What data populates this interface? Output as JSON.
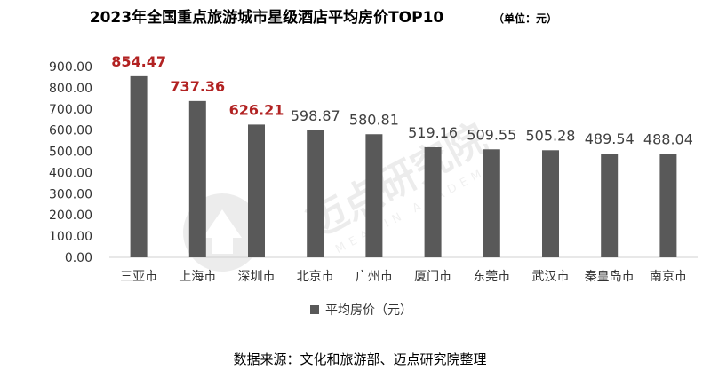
{
  "title": "2023年全国重点旅游城市星级酒店平均房价TOP10",
  "unit": "（单位：元）",
  "source": "数据来源：文化和旅游部、迈点研究院整理",
  "watermark": {
    "text": "迈点研究院",
    "sub": "MEADIN ACADEMY"
  },
  "chart_data": {
    "type": "bar",
    "categories": [
      "三亚市",
      "上海市",
      "深圳市",
      "北京市",
      "广州市",
      "厦门市",
      "东莞市",
      "武汉市",
      "秦皇岛市",
      "南京市"
    ],
    "series": [
      {
        "name": "平均房价（元）",
        "values": [
          854.47,
          737.36,
          626.21,
          598.87,
          580.81,
          519.16,
          509.55,
          505.28,
          489.54,
          488.04
        ]
      }
    ],
    "data_labels": [
      "854.47",
      "737.36",
      "626.21",
      "598.87",
      "580.81",
      "519.16",
      "509.55",
      "505.28",
      "489.54",
      "488.04"
    ],
    "highlight_top": 3,
    "y_ticks": [
      "0.00",
      "100.00",
      "200.00",
      "300.00",
      "400.00",
      "500.00",
      "600.00",
      "700.00",
      "800.00",
      "900.00"
    ],
    "ylim": [
      0,
      900
    ],
    "bar_color": "#595959",
    "highlight_color": "#b22222",
    "legend_position": "bottom",
    "grid": false
  }
}
